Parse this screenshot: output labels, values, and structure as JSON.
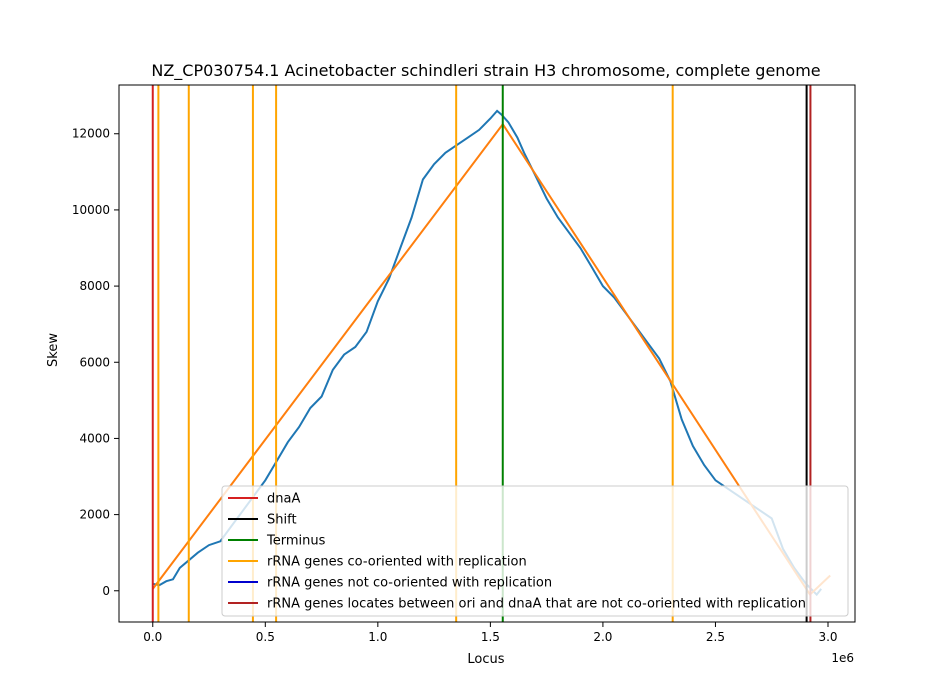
{
  "chart_data": {
    "type": "line",
    "title": "NZ_CP030754.1 Acinetobacter schindleri strain H3 chromosome, complete genome",
    "xlabel": "Locus",
    "ylabel": "Skew",
    "x_offset_label": "1e6",
    "xlim": [
      -150000,
      3120000
    ],
    "ylim": [
      -820,
      13280
    ],
    "x_ticks": [
      0,
      500000,
      1000000,
      1500000,
      2000000,
      2500000,
      3000000
    ],
    "x_tick_labels": [
      "0.0",
      "0.5",
      "1.0",
      "1.5",
      "2.0",
      "2.5",
      "3.0"
    ],
    "y_ticks": [
      0,
      2000,
      4000,
      6000,
      8000,
      10000,
      12000
    ],
    "y_tick_labels": [
      "0",
      "2000",
      "4000",
      "6000",
      "8000",
      "10000",
      "12000"
    ],
    "grid": false,
    "legend_position": "lower-right",
    "series": [
      {
        "color": "#1f77b4",
        "x": [
          0,
          30000,
          60000,
          90000,
          120000,
          160000,
          200000,
          250000,
          300000,
          350000,
          400000,
          450000,
          500000,
          550000,
          600000,
          650000,
          700000,
          750000,
          800000,
          850000,
          900000,
          950000,
          1000000,
          1050000,
          1100000,
          1150000,
          1200000,
          1250000,
          1300000,
          1350000,
          1400000,
          1450000,
          1500000,
          1530000,
          1550000,
          1580000,
          1620000,
          1650000,
          1700000,
          1750000,
          1800000,
          1850000,
          1900000,
          1950000,
          2000000,
          2050000,
          2100000,
          2150000,
          2200000,
          2250000,
          2300000,
          2350000,
          2400000,
          2450000,
          2500000,
          2550000,
          2600000,
          2650000,
          2700000,
          2750000,
          2800000,
          2850000,
          2900000,
          2950000,
          2970000
        ],
        "y": [
          180,
          150,
          250,
          300,
          600,
          800,
          1000,
          1200,
          1300,
          1700,
          2100,
          2500,
          2900,
          3400,
          3900,
          4300,
          4800,
          5100,
          5800,
          6200,
          6400,
          6800,
          7600,
          8200,
          9000,
          9800,
          10800,
          11200,
          11500,
          11700,
          11900,
          12100,
          12400,
          12600,
          12500,
          12300,
          11900,
          11500,
          10900,
          10300,
          9800,
          9400,
          9000,
          8500,
          8000,
          7700,
          7300,
          6900,
          6500,
          6100,
          5500,
          4500,
          3800,
          3300,
          2900,
          2700,
          2500,
          2300,
          2100,
          1900,
          1100,
          600,
          200,
          -100,
          50
        ]
      },
      {
        "color": "#ff7f0e",
        "x": [
          0,
          1555000,
          2920000,
          3010000
        ],
        "y": [
          50,
          12250,
          -100,
          400
        ]
      }
    ],
    "vertical_lines": [
      {
        "x": 0,
        "color": "#d62020",
        "series": "dnaA"
      },
      {
        "x": 25000,
        "color": "#ffa500",
        "series": "rRNA genes co-oriented with replication"
      },
      {
        "x": 160000,
        "color": "#ffa500",
        "series": "rRNA genes co-oriented with replication"
      },
      {
        "x": 445000,
        "color": "#ffa500",
        "series": "rRNA genes co-oriented with replication"
      },
      {
        "x": 548000,
        "color": "#ffa500",
        "series": "rRNA genes co-oriented with replication"
      },
      {
        "x": 1348000,
        "color": "#ffa500",
        "series": "rRNA genes co-oriented with replication"
      },
      {
        "x": 2310000,
        "color": "#ffa500",
        "series": "rRNA genes co-oriented with replication"
      },
      {
        "x": 1555000,
        "color": "#008000",
        "series": "Terminus"
      },
      {
        "x": 2905000,
        "color": "#000000",
        "series": "Shift"
      },
      {
        "x": 2922000,
        "color": "#b22222",
        "series": "rRNA genes locates between ori and dnaA that are not co-oriented with replication"
      }
    ],
    "legend": [
      {
        "label": "dnaA",
        "color": "#d62020"
      },
      {
        "label": "Shift",
        "color": "#000000"
      },
      {
        "label": "Terminus",
        "color": "#008000"
      },
      {
        "label": "rRNA genes co-oriented with replication",
        "color": "#ffa500"
      },
      {
        "label": "rRNA genes not co-oriented with replication",
        "color": "#0000cd"
      },
      {
        "label": "rRNA genes locates between ori and dnaA that are not co-oriented with replication",
        "color": "#b22222"
      }
    ]
  }
}
